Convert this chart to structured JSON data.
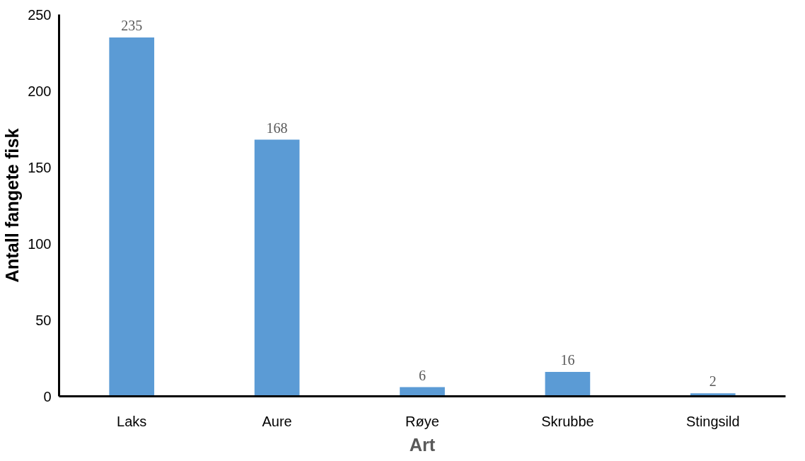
{
  "chart_data": {
    "type": "bar",
    "xlabel": "Art",
    "ylabel": "Antall fangete fisk",
    "categories": [
      "Laks",
      "Aure",
      "Røye",
      "Skrubbe",
      "Stingsild"
    ],
    "values": [
      235,
      168,
      6,
      16,
      2
    ],
    "color": "#5b9bd5",
    "ylim": [
      0,
      250
    ],
    "yticks": [
      0,
      50,
      100,
      150,
      200,
      250
    ],
    "grid": false,
    "data_labels": true
  }
}
